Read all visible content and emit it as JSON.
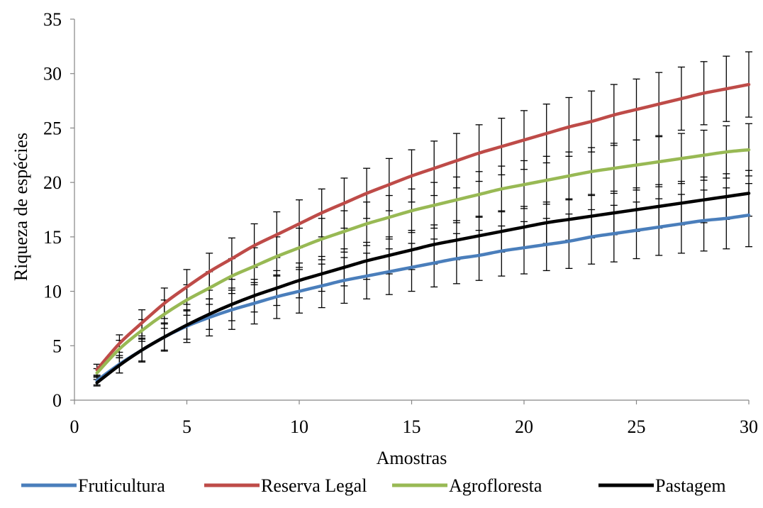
{
  "chart_data": {
    "type": "line",
    "title": "",
    "xlabel": "Amostras",
    "ylabel": "Riqueza de espécies",
    "xlim": [
      0,
      30
    ],
    "ylim": [
      0,
      35
    ],
    "xticks": [
      0,
      5,
      10,
      15,
      20,
      25,
      30
    ],
    "yticks": [
      0,
      5,
      10,
      15,
      20,
      25,
      30,
      35
    ],
    "grid": false,
    "legend_position": "bottom",
    "error_bars": true,
    "x": [
      1,
      2,
      3,
      4,
      5,
      6,
      7,
      8,
      9,
      10,
      11,
      12,
      13,
      14,
      15,
      16,
      17,
      18,
      19,
      20,
      21,
      22,
      23,
      24,
      25,
      26,
      27,
      28,
      29,
      30
    ],
    "series": [
      {
        "name": "Fruticultura",
        "color": "#4A7EBB",
        "values": [
          1.8,
          3.3,
          4.6,
          5.8,
          6.8,
          7.6,
          8.3,
          8.9,
          9.5,
          10.0,
          10.5,
          11.0,
          11.4,
          11.8,
          12.2,
          12.6,
          13.0,
          13.3,
          13.7,
          14.0,
          14.3,
          14.6,
          15.0,
          15.3,
          15.6,
          15.9,
          16.2,
          16.5,
          16.7,
          17.0
        ],
        "errors": [
          0.4,
          0.8,
          1.1,
          1.3,
          1.5,
          1.7,
          1.8,
          1.9,
          2.0,
          2.0,
          2.0,
          2.1,
          2.1,
          2.1,
          2.2,
          2.2,
          2.3,
          2.3,
          2.3,
          2.4,
          2.4,
          2.5,
          2.5,
          2.6,
          2.6,
          2.6,
          2.7,
          2.8,
          2.8,
          2.9
        ]
      },
      {
        "name": "Reserva Legal",
        "color": "#BE4B48",
        "values": [
          2.8,
          5.2,
          7.1,
          8.9,
          10.4,
          11.8,
          13.0,
          14.2,
          15.2,
          16.2,
          17.2,
          18.1,
          19.0,
          19.8,
          20.6,
          21.3,
          22.0,
          22.7,
          23.3,
          23.9,
          24.5,
          25.1,
          25.6,
          26.2,
          26.7,
          27.2,
          27.7,
          28.2,
          28.6,
          29.0
        ],
        "errors": [
          0.5,
          0.8,
          1.2,
          1.4,
          1.6,
          1.7,
          1.9,
          2.0,
          2.1,
          2.2,
          2.2,
          2.3,
          2.3,
          2.4,
          2.4,
          2.5,
          2.5,
          2.6,
          2.6,
          2.7,
          2.7,
          2.7,
          2.8,
          2.8,
          2.8,
          2.9,
          2.9,
          2.9,
          3.0,
          3.0
        ]
      },
      {
        "name": "Agrofloresta",
        "color": "#98B954",
        "values": [
          2.5,
          4.7,
          6.4,
          7.9,
          9.2,
          10.3,
          11.4,
          12.3,
          13.2,
          14.0,
          14.8,
          15.5,
          16.2,
          16.8,
          17.4,
          17.9,
          18.4,
          18.9,
          19.4,
          19.8,
          20.2,
          20.6,
          21.0,
          21.3,
          21.6,
          21.9,
          22.2,
          22.5,
          22.8,
          23.0
        ],
        "errors": [
          0.4,
          0.8,
          1.0,
          1.3,
          1.4,
          1.5,
          1.6,
          1.7,
          1.8,
          1.8,
          1.9,
          1.9,
          2.0,
          2.0,
          2.0,
          2.1,
          2.1,
          2.1,
          2.1,
          2.2,
          2.2,
          2.2,
          2.2,
          2.3,
          2.3,
          2.3,
          2.3,
          2.3,
          2.4,
          2.4
        ]
      },
      {
        "name": "Pastagem",
        "color": "#000000",
        "values": [
          1.6,
          3.2,
          4.6,
          5.8,
          6.9,
          7.9,
          8.8,
          9.6,
          10.3,
          11.0,
          11.6,
          12.2,
          12.8,
          13.3,
          13.8,
          14.3,
          14.7,
          15.1,
          15.5,
          15.9,
          16.3,
          16.6,
          16.9,
          17.2,
          17.5,
          17.8,
          18.1,
          18.4,
          18.7,
          19.0
        ],
        "errors": [
          0.3,
          0.7,
          1.0,
          1.2,
          1.3,
          1.4,
          1.5,
          1.5,
          1.6,
          1.6,
          1.6,
          1.7,
          1.7,
          1.7,
          1.8,
          1.8,
          1.8,
          1.8,
          1.9,
          1.9,
          1.9,
          1.9,
          2.0,
          2.0,
          2.0,
          2.0,
          2.0,
          2.1,
          2.1,
          2.1
        ]
      }
    ]
  }
}
